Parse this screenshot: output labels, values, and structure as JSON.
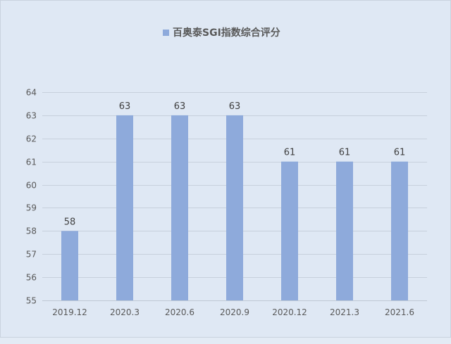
{
  "chart_data": {
    "type": "bar",
    "title": "",
    "categories": [
      "2019.12",
      "2020.3",
      "2020.6",
      "2020.9",
      "2020.12",
      "2021.3",
      "2021.6"
    ],
    "series": [
      {
        "name": "百奥泰SGI指数综合评分",
        "values": [
          58,
          63,
          63,
          63,
          61,
          61,
          61
        ],
        "color": "#8eaadb"
      }
    ],
    "data_labels": [
      "58",
      "63",
      "63",
      "63",
      "61",
      "61",
      "61"
    ],
    "y_ticks": [
      "55",
      "56",
      "57",
      "58",
      "59",
      "60",
      "61",
      "62",
      "63",
      "64"
    ],
    "ylim": [
      55,
      64
    ],
    "xlabel": "",
    "ylabel": "",
    "grid": true,
    "legend_position": "top-center"
  },
  "colors": {
    "background": "#e3ebf5",
    "bar": "#8eaadb",
    "grid": "#c7d0dc"
  }
}
